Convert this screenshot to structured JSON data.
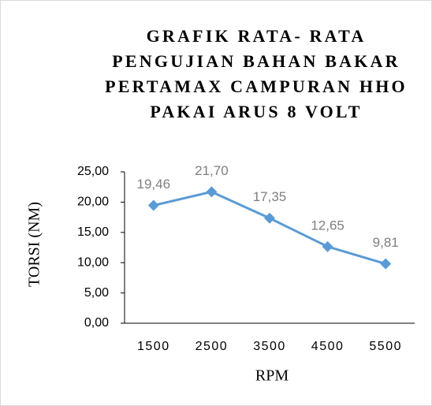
{
  "chart_data": {
    "type": "line",
    "title": "GRAFIK RATA- RATA PENGUJIAN BAHAN BAKAR PERTAMAX CAMPURAN HHO PAKAI ARUS 8 VOLT",
    "xlabel": "RPM",
    "ylabel": "TORSI (NM)",
    "categories": [
      "1500",
      "2500",
      "3500",
      "4500",
      "5500"
    ],
    "series": [
      {
        "name": "TORSI (NM)",
        "color": "#5b9bd5",
        "values": [
          19.46,
          21.7,
          17.35,
          12.65,
          9.81
        ],
        "value_labels": [
          "19,46",
          "21,70",
          "17,35",
          "12,65",
          "9,81"
        ]
      }
    ],
    "ylim": [
      0,
      25
    ],
    "yticks": [
      {
        "value": 0,
        "label": "0,00"
      },
      {
        "value": 5,
        "label": "5,00"
      },
      {
        "value": 10,
        "label": "10,00"
      },
      {
        "value": 15,
        "label": "15,00"
      },
      {
        "value": 20,
        "label": "20,00"
      },
      {
        "value": 25,
        "label": "25,00"
      }
    ],
    "grid": false
  }
}
